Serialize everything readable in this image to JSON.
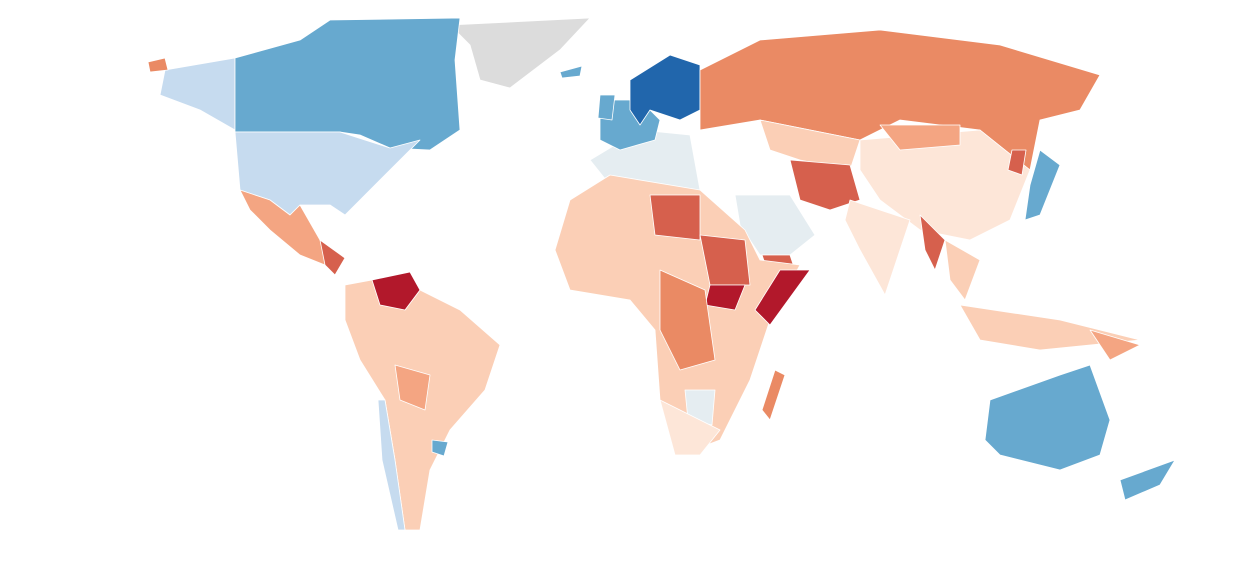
{
  "map": {
    "colors": [
      "#2166ac",
      "#67a9cf",
      "#c6dbef",
      "#e5edf1",
      "#dcdcdc",
      "#fde6d8",
      "#fbcfb6",
      "#f4a582",
      "#ea8a64",
      "#d6604d",
      "#b2182b"
    ]
  }
}
